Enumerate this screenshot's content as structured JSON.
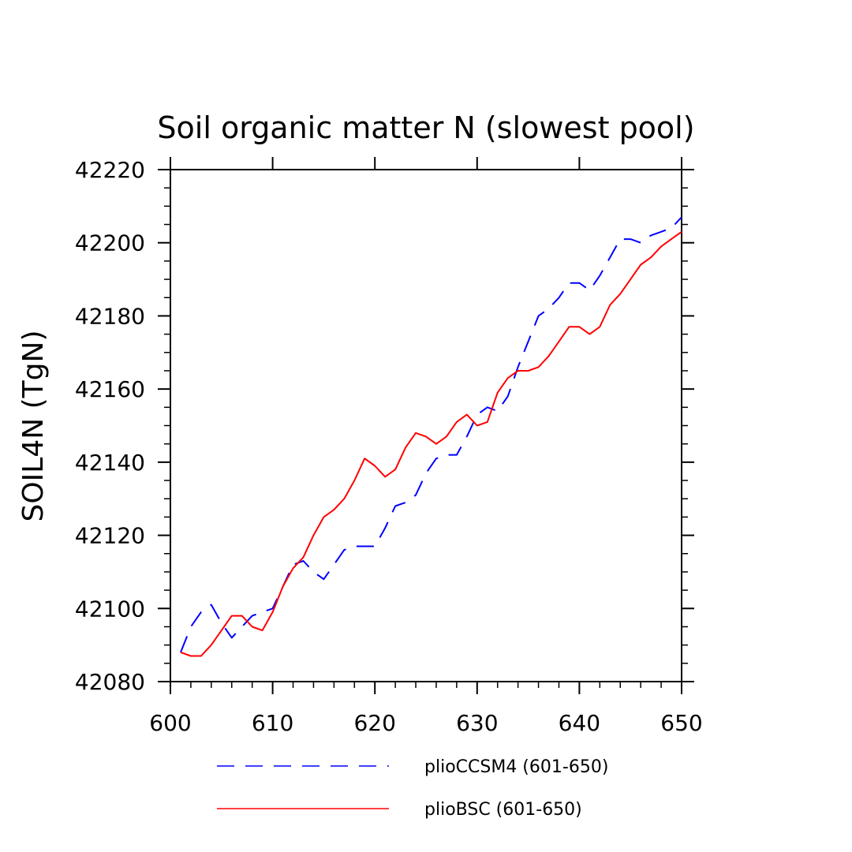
{
  "chart_data": {
    "type": "line",
    "title": "Soil organic matter N (slowest pool)",
    "xlabel": "",
    "ylabel": "SOIL4N   (TgN)",
    "xlim": [
      600,
      650
    ],
    "ylim": [
      42080,
      42220
    ],
    "xticks": [
      600,
      610,
      620,
      630,
      640,
      650
    ],
    "yticks": [
      42080,
      42100,
      42120,
      42140,
      42160,
      42180,
      42200,
      42220
    ],
    "x": [
      601,
      602,
      603,
      604,
      605,
      606,
      607,
      608,
      609,
      610,
      611,
      612,
      613,
      614,
      615,
      616,
      617,
      618,
      619,
      620,
      621,
      622,
      623,
      624,
      625,
      626,
      627,
      628,
      629,
      630,
      631,
      632,
      633,
      634,
      635,
      636,
      637,
      638,
      639,
      640,
      641,
      642,
      643,
      644,
      645,
      646,
      647,
      648,
      649,
      650
    ],
    "series": [
      {
        "name": "plioCCSM4 (601-650)",
        "color": "#0000ff",
        "style": "dashed",
        "values": [
          42088,
          42095,
          42099,
          42101,
          42096,
          42092,
          42095,
          42098,
          42099,
          42100,
          42106,
          42112,
          42113,
          42110,
          42108,
          42112,
          42116,
          42117,
          42117,
          42117,
          42122,
          42128,
          42129,
          42131,
          42137,
          42141,
          42142,
          42142,
          42147,
          42153,
          42155,
          42154,
          42158,
          42166,
          42173,
          42180,
          42182,
          42185,
          42189,
          42189,
          42187,
          42191,
          42196,
          42201,
          42201,
          42200,
          42202,
          42203,
          42204,
          42207
        ]
      },
      {
        "name": "plioBSC (601-650)",
        "color": "#ff0000",
        "style": "solid",
        "values": [
          42088,
          42087,
          42087,
          42090,
          42094,
          42098,
          42098,
          42095,
          42094,
          42099,
          42106,
          42111,
          42114,
          42120,
          42125,
          42127,
          42130,
          42135,
          42141,
          42139,
          42136,
          42138,
          42144,
          42148,
          42147,
          42145,
          42147,
          42151,
          42153,
          42150,
          42151,
          42159,
          42163,
          42165,
          42165,
          42166,
          42169,
          42173,
          42177,
          42177,
          42175,
          42177,
          42183,
          42186,
          42190,
          42194,
          42196,
          42199,
          42201,
          42203
        ]
      }
    ],
    "legend_position": "bottom",
    "grid": false
  }
}
